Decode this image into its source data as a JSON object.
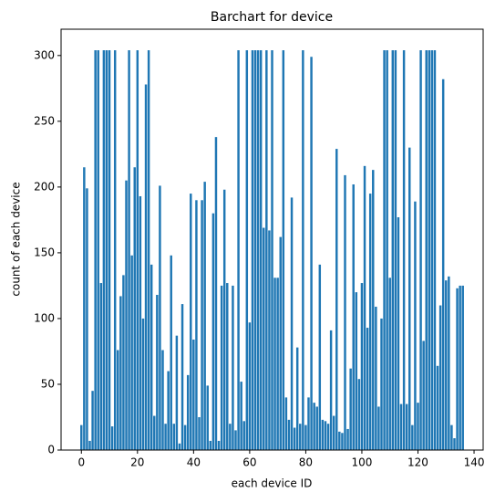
{
  "chart_data": {
    "type": "bar",
    "title": "Barchart for device",
    "x_label": "each device ID",
    "y_label": "count of each device",
    "x": [
      0,
      1,
      2,
      3,
      4,
      5,
      6,
      7,
      8,
      9,
      10,
      11,
      12,
      13,
      14,
      15,
      16,
      17,
      18,
      19,
      20,
      21,
      22,
      23,
      24,
      25,
      26,
      27,
      28,
      29,
      30,
      31,
      32,
      33,
      34,
      35,
      36,
      37,
      38,
      39,
      40,
      41,
      42,
      43,
      44,
      45,
      46,
      47,
      48,
      49,
      50,
      51,
      52,
      53,
      54,
      55,
      56,
      57,
      58,
      59,
      60,
      61,
      62,
      63,
      64,
      65,
      66,
      67,
      68,
      69,
      70,
      71,
      72,
      73,
      74,
      75,
      76,
      77,
      78,
      79,
      80,
      81,
      82,
      83,
      84,
      85,
      86,
      87,
      88,
      89,
      90,
      91,
      92,
      93,
      94,
      95,
      96,
      97,
      98,
      99,
      100,
      101,
      102,
      103,
      104,
      105,
      106,
      107,
      108,
      109,
      110,
      111,
      112,
      113,
      114,
      115,
      116,
      117,
      118,
      119,
      120,
      121,
      122,
      123,
      124,
      125,
      126,
      127,
      128,
      129,
      130,
      131,
      132,
      133,
      134,
      135,
      136
    ],
    "values": [
      19,
      215,
      199,
      7,
      45,
      304,
      304,
      127,
      304,
      304,
      304,
      18,
      304,
      76,
      117,
      133,
      205,
      304,
      148,
      215,
      304,
      193,
      100,
      278,
      304,
      141,
      26,
      118,
      201,
      76,
      20,
      60,
      148,
      20,
      87,
      5,
      111,
      19,
      57,
      195,
      84,
      190,
      25,
      190,
      204,
      49,
      7,
      180,
      238,
      7,
      125,
      198,
      127,
      20,
      125,
      15,
      304,
      52,
      22,
      304,
      97,
      304,
      304,
      304,
      304,
      169,
      304,
      167,
      304,
      131,
      131,
      162,
      304,
      40,
      23,
      192,
      17,
      78,
      20,
      304,
      19,
      40,
      299,
      36,
      33,
      141,
      23,
      22,
      20,
      91,
      26,
      229,
      14,
      13,
      209,
      16,
      62,
      202,
      120,
      54,
      127,
      216,
      93,
      195,
      213,
      109,
      33,
      100,
      304,
      304,
      131,
      304,
      304,
      177,
      35,
      304,
      35,
      230,
      19,
      189,
      36,
      304,
      83,
      304,
      304,
      304,
      304,
      64,
      110,
      282,
      129,
      132,
      19,
      9,
      123,
      125,
      125
    ],
    "color": "#1f77b4",
    "xlim": [
      -7.24,
      143.24
    ],
    "ylim": [
      0,
      320
    ],
    "xticks": [
      0,
      20,
      40,
      60,
      80,
      100,
      120,
      140
    ],
    "yticks": [
      0,
      50,
      100,
      150,
      200,
      250,
      300
    ]
  }
}
